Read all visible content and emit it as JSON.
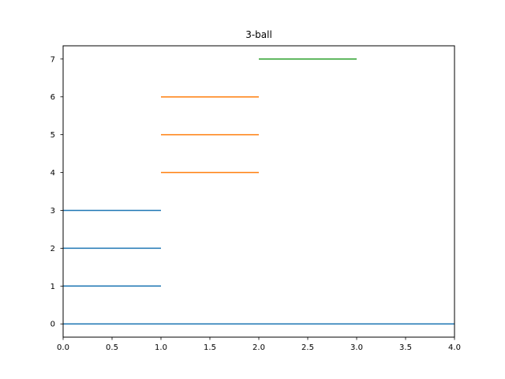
{
  "chart_data": {
    "type": "line",
    "title": "3-ball",
    "xlabel": "",
    "ylabel": "",
    "xlim": [
      0.0,
      4.0
    ],
    "ylim": [
      -0.35,
      7.35
    ],
    "grid": false,
    "x_ticks": [
      0.0,
      0.5,
      1.0,
      1.5,
      2.0,
      2.5,
      3.0,
      3.5,
      4.0
    ],
    "x_tick_labels": [
      "0.0",
      "0.5",
      "1.0",
      "1.5",
      "2.0",
      "2.5",
      "3.0",
      "3.5",
      "4.0"
    ],
    "y_ticks": [
      0,
      1,
      2,
      3,
      4,
      5,
      6,
      7
    ],
    "y_tick_labels": [
      "0",
      "1",
      "2",
      "3",
      "4",
      "5",
      "6",
      "7"
    ],
    "series": [
      {
        "color": "#1f77b4",
        "segments": [
          {
            "x": [
              0.0,
              4.0
            ],
            "y": [
              0,
              0
            ]
          },
          {
            "x": [
              0.0,
              1.0
            ],
            "y": [
              1,
              1
            ]
          },
          {
            "x": [
              0.0,
              1.0
            ],
            "y": [
              2,
              2
            ]
          },
          {
            "x": [
              0.0,
              1.0
            ],
            "y": [
              3,
              3
            ]
          }
        ]
      },
      {
        "color": "#ff7f0e",
        "segments": [
          {
            "x": [
              1.0,
              2.0
            ],
            "y": [
              4,
              4
            ]
          },
          {
            "x": [
              1.0,
              2.0
            ],
            "y": [
              5,
              5
            ]
          },
          {
            "x": [
              1.0,
              2.0
            ],
            "y": [
              6,
              6
            ]
          }
        ]
      },
      {
        "color": "#2ca02c",
        "segments": [
          {
            "x": [
              2.0,
              3.0
            ],
            "y": [
              7,
              7
            ]
          }
        ]
      }
    ]
  }
}
